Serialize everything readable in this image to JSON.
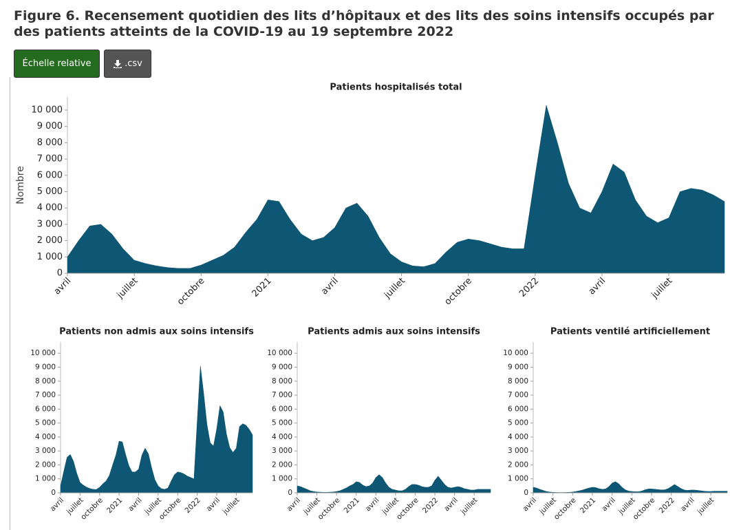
{
  "title": "Figure 6. Recensement quotidien des lits d’hôpitaux et des lits des soins intensifs occupés par des patients atteints de la COVID-19 au 19 septembre 2022",
  "buttons": [
    "Échelle relative",
    ".csv"
  ],
  "chart_data": [
    {
      "type": "area",
      "title": "Patients hospitalisés total",
      "ylabel": "Nombre",
      "color": "#0d5674",
      "categories": [
        "avril",
        null,
        null,
        null,
        null,
        null,
        "juillet",
        null,
        null,
        null,
        null,
        null,
        "octobre",
        null,
        null,
        null,
        null,
        null,
        "2021",
        null,
        null,
        null,
        null,
        null,
        "avril",
        null,
        null,
        null,
        null,
        null,
        "juillet",
        null,
        null,
        null,
        null,
        null,
        "octobre",
        null,
        null,
        null,
        null,
        null,
        "2022",
        null,
        null,
        null,
        null,
        null,
        "avril",
        null,
        null,
        null,
        null,
        null,
        "juillet",
        null,
        null,
        null,
        null,
        null
      ],
      "values": [
        1000,
        2000,
        2900,
        3000,
        2400,
        1500,
        800,
        600,
        450,
        350,
        300,
        300,
        500,
        800,
        1100,
        1600,
        2500,
        3300,
        4500,
        4400,
        3300,
        2400,
        2000,
        2200,
        2800,
        4000,
        4300,
        3500,
        2200,
        1200,
        700,
        450,
        400,
        600,
        1300,
        1900,
        2100,
        2000,
        1800,
        1600,
        1500,
        1500,
        6000,
        10300,
        8000,
        5500,
        4000,
        3700,
        5000,
        6700,
        6200,
        4500,
        3500,
        3100,
        3400,
        5000,
        5200,
        5100,
        4800,
        4400
      ],
      "ylim": [
        0,
        10800
      ],
      "yticks": [
        0,
        {
          "value": 1000,
          "label": "1 000"
        },
        {
          "value": 2000,
          "label": "2 000"
        },
        {
          "value": 3000,
          "label": "3 000"
        },
        {
          "value": 4000,
          "label": "4 000"
        },
        {
          "value": 5000,
          "label": "5 000"
        },
        {
          "value": 6000,
          "label": "6 000"
        },
        {
          "value": 7000,
          "label": "7 000"
        },
        {
          "value": 8000,
          "label": "8 000"
        },
        {
          "value": 9000,
          "label": "9 000"
        },
        {
          "value": 10000,
          "label": "10 000"
        }
      ]
    },
    {
      "type": "area",
      "title": "Patients non admis aux soins intensifs",
      "color": "#0d5674",
      "categories": [
        "avril",
        null,
        null,
        null,
        null,
        null,
        "juillet",
        null,
        null,
        null,
        null,
        null,
        "octobre",
        null,
        null,
        null,
        null,
        null,
        "2021",
        null,
        null,
        null,
        null,
        null,
        "avril",
        null,
        null,
        null,
        null,
        null,
        "juillet",
        null,
        null,
        null,
        null,
        null,
        "octobre",
        null,
        null,
        null,
        null,
        null,
        "2022",
        null,
        null,
        null,
        null,
        null,
        "avril",
        null,
        null,
        null,
        null,
        null,
        "juillet",
        null,
        null,
        null,
        null,
        null
      ],
      "values": [
        500,
        1550,
        2550,
        2750,
        2250,
        1400,
        740,
        550,
        410,
        310,
        250,
        240,
        400,
        650,
        850,
        1250,
        2000,
        2700,
        3700,
        3650,
        2750,
        1950,
        1500,
        1500,
        1700,
        2700,
        3200,
        2800,
        1800,
        950,
        500,
        300,
        250,
        350,
        850,
        1300,
        1500,
        1450,
        1350,
        1200,
        1100,
        1000,
        5100,
        9100,
        7100,
        4900,
        3600,
        3350,
        4600,
        6250,
        5800,
        4200,
        3250,
        2900,
        3200,
        4750,
        4950,
        4850,
        4550,
        4150
      ],
      "ylim": [
        0,
        10800
      ],
      "yticks": [
        0,
        {
          "value": 1000,
          "label": "1 000"
        },
        {
          "value": 2000,
          "label": "2 000"
        },
        {
          "value": 3000,
          "label": "3 000"
        },
        {
          "value": 4000,
          "label": "4 000"
        },
        {
          "value": 5000,
          "label": "5 000"
        },
        {
          "value": 6000,
          "label": "6 000"
        },
        {
          "value": 7000,
          "label": "7 000"
        },
        {
          "value": 8000,
          "label": "8 000"
        },
        {
          "value": 9000,
          "label": "9 000"
        },
        {
          "value": 10000,
          "label": "10 000"
        }
      ]
    },
    {
      "type": "area",
      "title": "Patients admis aux soins intensifs",
      "color": "#0d5674",
      "categories": [
        "avril",
        null,
        null,
        null,
        null,
        null,
        "juillet",
        null,
        null,
        null,
        null,
        null,
        "octobre",
        null,
        null,
        null,
        null,
        null,
        "2021",
        null,
        null,
        null,
        null,
        null,
        "avril",
        null,
        null,
        null,
        null,
        null,
        "juillet",
        null,
        null,
        null,
        null,
        null,
        "octobre",
        null,
        null,
        null,
        null,
        null,
        "2022",
        null,
        null,
        null,
        null,
        null,
        "avril",
        null,
        null,
        null,
        null,
        null,
        "juillet",
        null,
        null,
        null,
        null,
        null
      ],
      "values": [
        500,
        450,
        350,
        250,
        150,
        100,
        60,
        50,
        40,
        40,
        50,
        60,
        100,
        150,
        250,
        350,
        500,
        600,
        800,
        750,
        550,
        450,
        500,
        700,
        1100,
        1300,
        1100,
        700,
        400,
        250,
        200,
        150,
        150,
        250,
        450,
        600,
        600,
        550,
        450,
        400,
        400,
        500,
        900,
        1200,
        900,
        600,
        400,
        350,
        400,
        450,
        400,
        300,
        250,
        200,
        200,
        250,
        250,
        250,
        250,
        250
      ],
      "ylim": [
        0,
        10800
      ],
      "yticks": [
        0,
        {
          "value": 1000,
          "label": "1 000"
        },
        {
          "value": 2000,
          "label": "2 000"
        },
        {
          "value": 3000,
          "label": "3 000"
        },
        {
          "value": 4000,
          "label": "4 000"
        },
        {
          "value": 5000,
          "label": "5 000"
        },
        {
          "value": 6000,
          "label": "6 000"
        },
        {
          "value": 7000,
          "label": "7 000"
        },
        {
          "value": 8000,
          "label": "8 000"
        },
        {
          "value": 9000,
          "label": "9 000"
        },
        {
          "value": 10000,
          "label": "10 000"
        }
      ]
    },
    {
      "type": "area",
      "title": "Patients ventilé artificiellement",
      "color": "#0d5674",
      "categories": [
        "avril",
        null,
        null,
        null,
        null,
        null,
        "juillet",
        null,
        null,
        null,
        null,
        null,
        "octobre",
        null,
        null,
        null,
        null,
        null,
        "2021",
        null,
        null,
        null,
        null,
        null,
        "avril",
        null,
        null,
        null,
        null,
        null,
        "juillet",
        null,
        null,
        null,
        null,
        null,
        "octobre",
        null,
        null,
        null,
        null,
        null,
        "2022",
        null,
        null,
        null,
        null,
        null,
        "avril",
        null,
        null,
        null,
        null,
        null,
        "juillet",
        null,
        null,
        null,
        null,
        null
      ],
      "values": [
        400,
        350,
        250,
        180,
        100,
        60,
        40,
        30,
        25,
        25,
        30,
        40,
        60,
        100,
        150,
        200,
        280,
        350,
        400,
        380,
        300,
        250,
        280,
        450,
        700,
        800,
        650,
        400,
        220,
        130,
        100,
        80,
        80,
        130,
        220,
        280,
        280,
        260,
        230,
        210,
        220,
        300,
        450,
        600,
        450,
        300,
        200,
        180,
        200,
        200,
        180,
        150,
        120,
        100,
        100,
        120,
        120,
        120,
        120,
        120
      ],
      "ylim": [
        0,
        10800
      ],
      "yticks": [
        0,
        {
          "value": 1000,
          "label": "1 000"
        },
        {
          "value": 2000,
          "label": "2 000"
        },
        {
          "value": 3000,
          "label": "3 000"
        },
        {
          "value": 4000,
          "label": "4 000"
        },
        {
          "value": 5000,
          "label": "5 000"
        },
        {
          "value": 6000,
          "label": "6 000"
        },
        {
          "value": 7000,
          "label": "7 000"
        },
        {
          "value": 8000,
          "label": "8 000"
        },
        {
          "value": 9000,
          "label": "9 000"
        },
        {
          "value": 10000,
          "label": "10 000"
        }
      ]
    }
  ]
}
